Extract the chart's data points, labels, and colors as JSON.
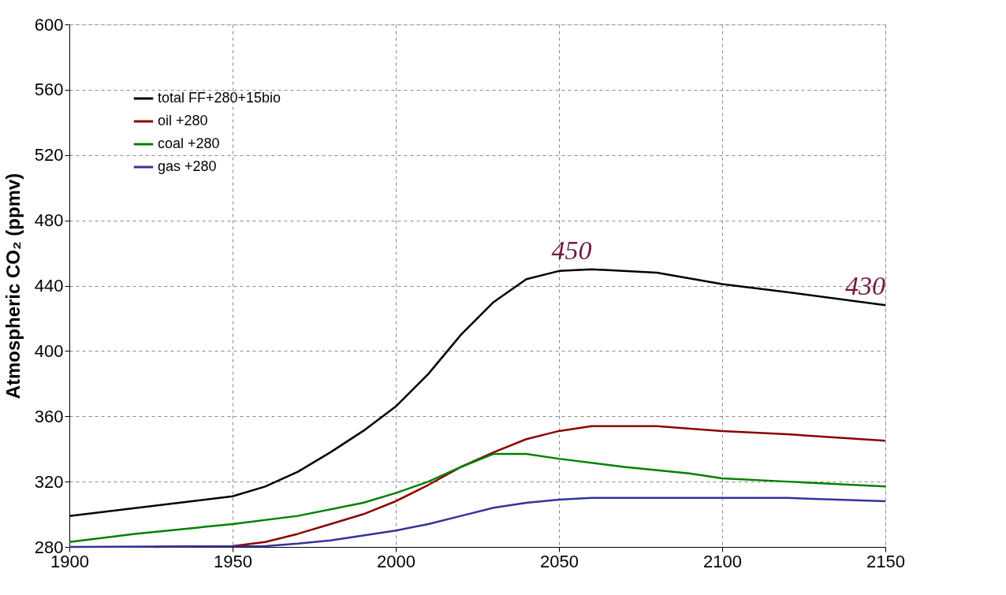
{
  "chart_data": {
    "type": "line",
    "ylabel": "Atmospheric CO₂ (ppmv)",
    "xlim": [
      1900,
      2150
    ],
    "xticks": [
      1900,
      1950,
      2000,
      2050,
      2100,
      2150
    ],
    "ylim": [
      280,
      600
    ],
    "yticks": [
      280,
      320,
      360,
      400,
      440,
      480,
      520,
      560,
      600
    ],
    "grid": true,
    "legend": "top left",
    "marker": "none",
    "line_style": "solid",
    "series": [
      {
        "name": "total FF+280+15bio",
        "color": "#000000",
        "x": [
          1900,
          1950,
          1960,
          1970,
          1980,
          1990,
          2000,
          2010,
          2020,
          2030,
          2040,
          2050,
          2060,
          2080,
          2100,
          2120,
          2150
        ],
        "values": [
          299,
          311,
          317,
          326,
          338,
          351,
          366,
          386,
          410,
          430,
          444,
          449,
          450,
          448,
          441,
          436,
          428
        ]
      },
      {
        "name": "oil +280",
        "color": "#8b0000",
        "x": [
          1926,
          1950,
          1960,
          1970,
          1980,
          1990,
          2000,
          2010,
          2020,
          2030,
          2040,
          2050,
          2060,
          2080,
          2100,
          2120,
          2150
        ],
        "values": [
          280,
          280.5,
          283,
          288,
          294,
          300,
          308,
          318,
          329,
          338,
          346,
          351,
          354,
          354,
          351,
          349,
          345
        ]
      },
      {
        "name": "coal +280",
        "color": "#008000",
        "x": [
          1900,
          1920,
          1950,
          1970,
          1990,
          2000,
          2010,
          2020,
          2030,
          2040,
          2050,
          2070,
          2090,
          2100,
          2120,
          2150
        ],
        "values": [
          283,
          288,
          294,
          299,
          307,
          313,
          320,
          329,
          337,
          337,
          334,
          329,
          325,
          322,
          320,
          317
        ]
      },
      {
        "name": "gas +280",
        "color": "#333399",
        "x": [
          1900,
          1960,
          1970,
          1980,
          1990,
          2000,
          2010,
          2020,
          2030,
          2040,
          2050,
          2060,
          2100,
          2120,
          2150
        ],
        "values": [
          280,
          280.5,
          282,
          284,
          287,
          290,
          294,
          299,
          304,
          307,
          309,
          310,
          310,
          310,
          308
        ]
      }
    ],
    "annotations": [
      {
        "text": "450",
        "x": 2060,
        "y": 450
      },
      {
        "text": "430",
        "x": 2150,
        "y": 428
      }
    ]
  }
}
